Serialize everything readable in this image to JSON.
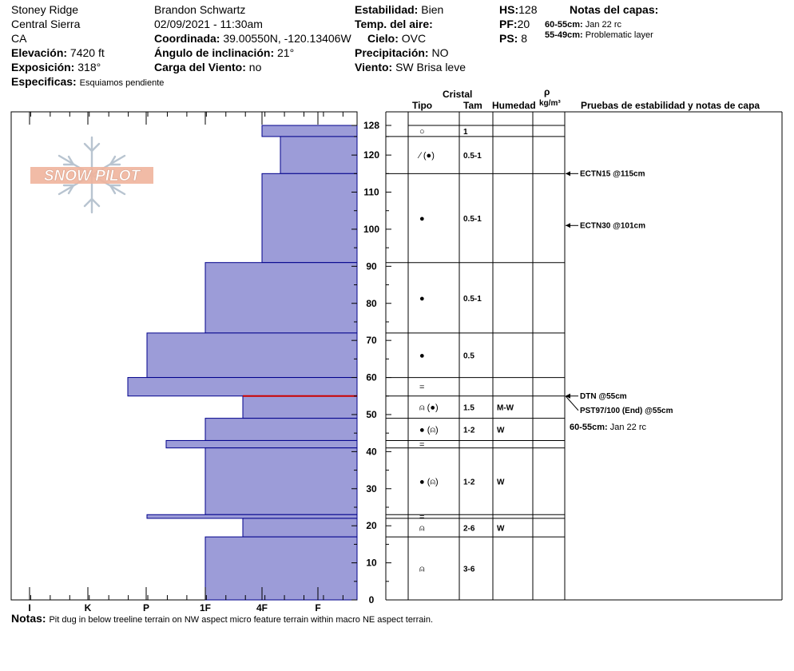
{
  "header": {
    "location": "Stoney Ridge",
    "range": "Central Sierra",
    "state": "CA",
    "elevation_label": "Elevación:",
    "elevation_value": "7420 ft",
    "aspect_label": "Exposición:",
    "aspect_value": "318°",
    "specifics_label": "Especificas:",
    "specifics_value": "Esquiamos pendiente",
    "observer": "Brandon Schwartz",
    "datetime": "02/09/2021 - 11:30am",
    "coord_label": "Coordinada:",
    "coord_value": "39.00550N, -120.13406W",
    "slope_label": "Ángulo de inclinación:",
    "slope_value": "21°",
    "wind_load_label": "Carga del Viento:",
    "wind_load_value": "no",
    "stability_label": "Estabilidad:",
    "stability_value": "Bien",
    "air_temp_label": "Temp. del aire:",
    "air_temp_value": "",
    "sky_label": "Cielo:",
    "sky_value": "OVC",
    "precip_label": "Precipitación:",
    "precip_value": "NO",
    "wind_label": "Viento:",
    "wind_value": "SW Brisa leve",
    "hs_label": "HS:",
    "hs_value": "128",
    "pf_label": "PF:",
    "pf_value": "20",
    "ps_label": "PS:",
    "ps_value": "8",
    "layer_notes_title": "Notas del capas:",
    "layer_notes": [
      {
        "range": "60-55cm:",
        "text": "Jan 22 rc"
      },
      {
        "range": "55-49cm:",
        "text": "Problematic layer"
      }
    ]
  },
  "logo": {
    "text": "SNOW PILOT"
  },
  "columns": {
    "crystal": "Cristal",
    "type": "Tipo",
    "size": "Tam",
    "moisture": "Humedad",
    "rho": "ρ",
    "density_unit": "kg/m³",
    "tests": "Pruebas de estabilidad y notas de capa"
  },
  "tests": [
    {
      "depth": 115,
      "label": "ECTN15 @115cm"
    },
    {
      "depth": 101,
      "label": "ECTN30 @101cm"
    },
    {
      "depth": 55,
      "label": "DTN @55cm"
    },
    {
      "depth": 55,
      "label": "PST97/100 (End) @55cm"
    }
  ],
  "right_note": {
    "range": "60-55cm:",
    "text": "Jan 22 rc"
  },
  "footer": {
    "notes_label": "Notas:",
    "notes_text": "Pit dug in below treeline terrain on NW aspect micro feature terrain within macro NE aspect terrain."
  },
  "chart_data": {
    "type": "bar",
    "orientation": "horizontal",
    "title": "",
    "ylabel": "",
    "xlabel": "",
    "ylim": [
      0,
      128
    ],
    "y_ticks": [
      0,
      10,
      20,
      30,
      40,
      50,
      60,
      70,
      80,
      90,
      100,
      110,
      120,
      128
    ],
    "hardness_scale": [
      "I",
      "K",
      "P",
      "1F",
      "4F",
      "F"
    ],
    "layers": [
      {
        "top": 128,
        "bottom": 125,
        "hardness": "4F",
        "type": "○",
        "size": "1",
        "moisture": ""
      },
      {
        "top": 125,
        "bottom": 115,
        "hardness": "4F-F",
        "type": "⁄ (●)",
        "size": "0.5-1",
        "moisture": ""
      },
      {
        "top": 115,
        "bottom": 91,
        "hardness": "4F",
        "type": "●",
        "size": "0.5-1",
        "moisture": ""
      },
      {
        "top": 91,
        "bottom": 72,
        "hardness": "1F",
        "type": "●",
        "size": "0.5-1",
        "moisture": ""
      },
      {
        "top": 72,
        "bottom": 60,
        "hardness": "P",
        "type": "●",
        "size": "0.5",
        "moisture": ""
      },
      {
        "top": 60,
        "bottom": 55,
        "hardness": "P+",
        "type": "=",
        "size": "",
        "moisture": ""
      },
      {
        "top": 55,
        "bottom": 49,
        "hardness": "1F-4F",
        "type": "⍝ (●)",
        "size": "1.5",
        "moisture": "M-W"
      },
      {
        "top": 49,
        "bottom": 43,
        "hardness": "1F",
        "type": "● (⍝)",
        "size": "1-2",
        "moisture": "W"
      },
      {
        "top": 43,
        "bottom": 41,
        "hardness": "P-1F",
        "type": "=",
        "size": "",
        "moisture": ""
      },
      {
        "top": 41,
        "bottom": 23,
        "hardness": "1F",
        "type": "● (⍝)",
        "size": "1-2",
        "moisture": "W"
      },
      {
        "top": 23,
        "bottom": 22,
        "hardness": "P",
        "type": "=",
        "size": "",
        "moisture": ""
      },
      {
        "top": 22,
        "bottom": 17,
        "hardness": "1F-4F",
        "type": "⍝",
        "size": "2-6",
        "moisture": "W"
      },
      {
        "top": 17,
        "bottom": 0,
        "hardness": "1F",
        "type": "⍝",
        "size": "3-6",
        "moisture": ""
      }
    ],
    "problem_layer_depth": 55,
    "colors": {
      "bar_fill": "#9c9cd8",
      "bar_stroke": "#00008b",
      "problem_line": "#cc0000"
    }
  }
}
